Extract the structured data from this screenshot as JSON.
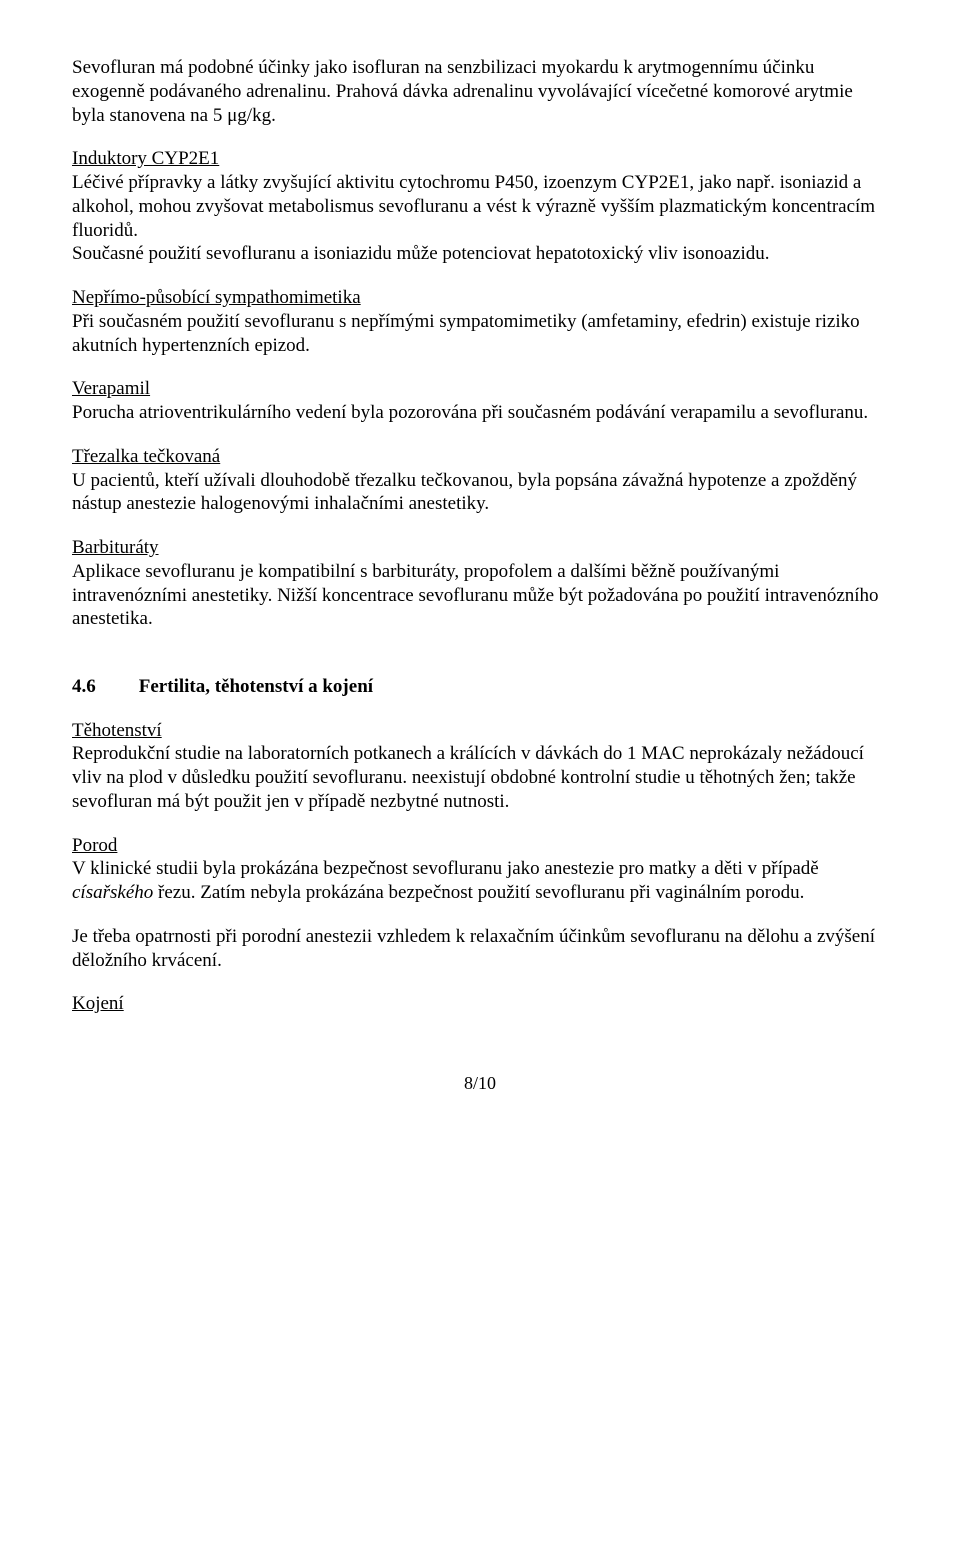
{
  "p1": "Sevofluran má podobné účinky jako isofluran na senzbilizaci myokardu k arytmogennímu účinku exogenně podávaného adrenalinu. Prahová dávka adrenalinu vyvolávající vícečetné komorové arytmie byla stanovena na 5 μg/kg.",
  "h_cyp": "Induktory CYP2E1",
  "p2": "Léčivé přípravky a látky zvyšující aktivitu cytochromu P450, izoenzym CYP2E1, jako např. isoniazid a alkohol, mohou zvyšovat metabolismus sevofluranu a vést k výrazně vyšším plazmatickým koncentracím fluoridů.",
  "p3": "Současné použití sevofluranu a isoniazidu může potenciovat hepatotoxický vliv isonoazidu.",
  "h_nepr": "Nepřímo-působící sympathomimetika",
  "p4": "Při současném použití sevofluranu s nepřímými sympatomimetiky (amfetaminy, efedrin) existuje riziko akutních hypertenzních epizod.",
  "h_verap": "Verapamil",
  "p5": "Porucha atrioventrikulárního vedení byla pozorována při současném podávání verapamilu a sevofluranu.",
  "h_trez": "Třezalka tečkovaná",
  "p6": "U pacientů, kteří užívali dlouhodobě třezalku tečkovanou, byla popsána závažná hypotenze a zpožděný nástup anestezie halogenovými inhalačními anestetiky.",
  "h_barb": "Barbituráty",
  "p7": "Aplikace sevofluranu je kompatibilní s barbituráty, propofolem a dalšími běžně používanými intravenózními anestetiky. Nižší koncentrace sevofluranu může být požadována po použití intravenózního anestetika.",
  "sec_num": "4.6",
  "sec_title": "Fertilita, těhotenství a kojení",
  "h_teh": "Těhotenství",
  "p8": "Reprodukční studie na laboratorních potkanech a králících v dávkách do 1 MAC neprokázaly nežádoucí vliv na plod v důsledku použití sevofluranu. neexistují obdobné kontrolní studie u těhotných žen; takže sevofluran má být použit jen v případě nezbytné nutnosti.",
  "h_porod": "Porod",
  "p9a": "V klinické studii byla prokázána bezpečnost sevofluranu jako anestezie pro matky a děti v případě ",
  "p9b": "císařského",
  "p9c": " řezu. Zatím nebyla prokázána bezpečnost použití sevofluranu při vaginálním porodu.",
  "p10": "Je třeba opatrnosti při porodní anestezii vzhledem k relaxačním účinkům sevofluranu na dělohu a zvýšení děložního krvácení.",
  "h_koj": "Kojení",
  "footer": "8/10"
}
